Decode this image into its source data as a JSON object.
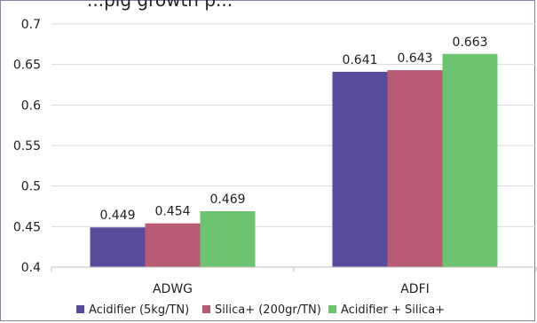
{
  "chart_data": {
    "type": "bar",
    "title_fragment": "...pig growth p...",
    "categories": [
      "ADWG",
      "ADFI"
    ],
    "series": [
      {
        "name": "Acidifier (5kg/TN)",
        "values": [
          0.449,
          0.641
        ],
        "color": "#574b9c"
      },
      {
        "name": "Silica+ (200gr/TN)",
        "values": [
          0.454,
          0.643
        ],
        "color": "#b85a73"
      },
      {
        "name": "Acidifier + Silica+",
        "values": [
          0.469,
          0.663
        ],
        "color": "#6cc472"
      }
    ],
    "y_ticks": [
      "0.4",
      "0.45",
      "0.5",
      "0.55",
      "0.6",
      "0.65",
      "0.7"
    ],
    "ylim": [
      0.4,
      0.7
    ],
    "grid": true,
    "legend_position": "bottom"
  }
}
